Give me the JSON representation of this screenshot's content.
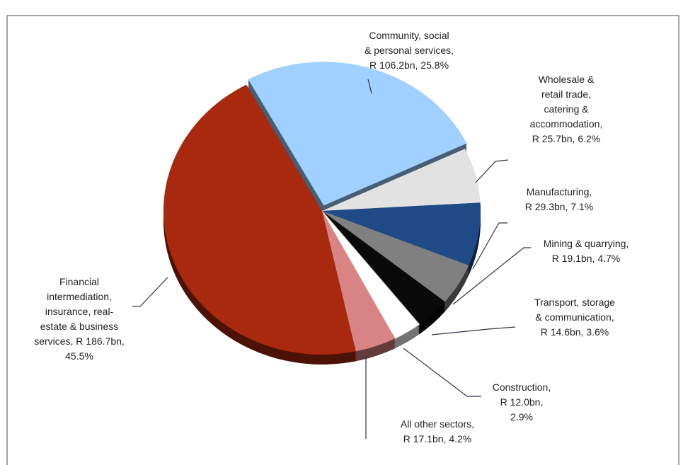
{
  "chart_data": {
    "type": "pie",
    "labels": [
      [
        "Community, social",
        "& personal services,",
        "R 106.2bn, 25.8%"
      ],
      [
        "Wholesale &",
        "retail trade,",
        "catering &",
        "accommodation,",
        "R 25.7bn, 6.2%"
      ],
      [
        "Manufacturing,",
        "R 29.3bn, 7.1%"
      ],
      [
        "Mining & quarrying,",
        "R 19.1bn, 4.7%"
      ],
      [
        "Transport, storage",
        "& communication,",
        "R 14.6bn, 3.6%"
      ],
      [
        "Construction,",
        "R 12.0bn,",
        "2.9%"
      ],
      [
        "All other sectors,",
        "R 17.1bn, 4.2%"
      ],
      [
        "Financial",
        "intermediation,",
        "insurance, real-",
        "estate & business",
        "services, R 186.7bn,",
        "45.5%"
      ]
    ],
    "values": [
      25.8,
      6.2,
      7.1,
      4.7,
      3.6,
      2.9,
      4.2,
      45.5
    ],
    "colors": [
      "#9fd0ff",
      "#e2e2e2",
      "#1f4a86",
      "#808080",
      "#0a0a0a",
      "#ffffff",
      "#d98484",
      "#a8290d"
    ]
  }
}
